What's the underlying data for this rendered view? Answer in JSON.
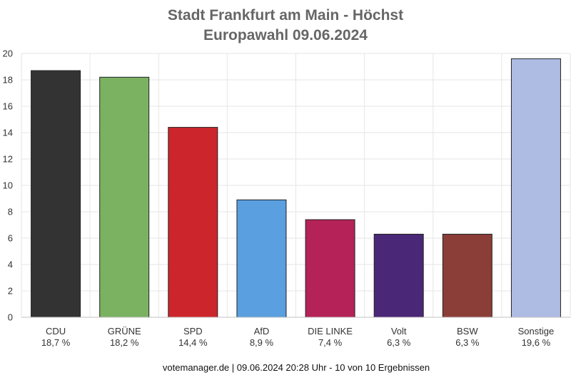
{
  "chart_data": {
    "type": "bar",
    "title": "Stadt Frankfurt am Main - Höchst",
    "subtitle": "Europawahl 09.06.2024",
    "categories": [
      "CDU",
      "GRÜNE",
      "SPD",
      "AfD",
      "DIE LINKE",
      "Volt",
      "BSW",
      "Sonstige"
    ],
    "values": [
      18.7,
      18.2,
      14.4,
      8.9,
      7.4,
      6.3,
      6.3,
      19.6
    ],
    "value_labels": [
      "18,7 %",
      "18,2 %",
      "14,4 %",
      "8,9 %",
      "7,4 %",
      "6,3 %",
      "6,3 %",
      "19,6 %"
    ],
    "colors": [
      "#333333",
      "#7ab262",
      "#cc262c",
      "#5a9fe0",
      "#b52258",
      "#4b2777",
      "#8b3e37",
      "#aebce4"
    ],
    "ylim": [
      0,
      20
    ],
    "yticks": [
      "0",
      "2",
      "4",
      "6",
      "8",
      "10",
      "12",
      "14",
      "16",
      "18",
      "20"
    ],
    "xlabel": "",
    "ylabel": "",
    "grid": true,
    "legend": "none"
  },
  "footer": "votemanager.de | 09.06.2024 20:28 Uhr - 10 von 10 Ergebnissen"
}
